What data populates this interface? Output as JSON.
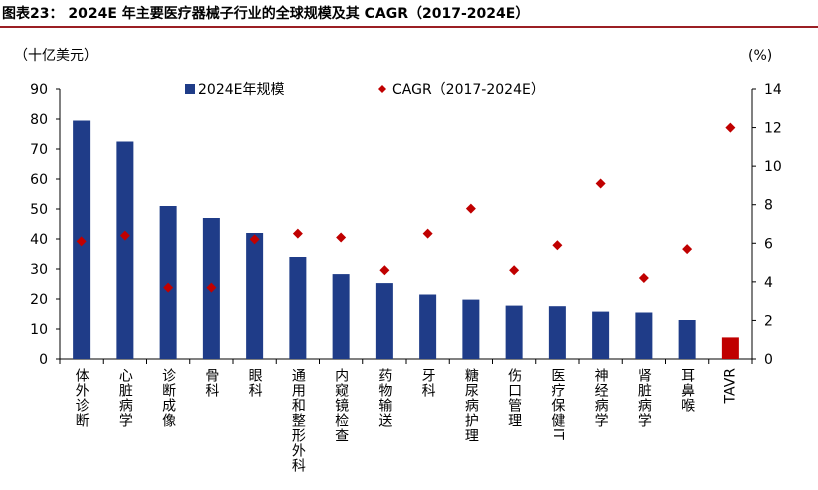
{
  "title": "图表23： 2024E 年主要医疗器械子行业的全球规模及其 CAGR（2017-2024E）",
  "chart_data": {
    "type": "bar",
    "categories": [
      "体外诊断",
      "心脏病学",
      "诊断成像",
      "骨科",
      "眼科",
      "通用和整形外科",
      "内窥镜检查",
      "药物输送",
      "牙科",
      "糖尿病护理",
      "伤口管理",
      "医疗保健IT",
      "神经病学",
      "肾脏病学",
      "耳鼻喉",
      "TAVR"
    ],
    "series": [
      {
        "name": "2024E年规模",
        "kind": "bar",
        "axis": "left",
        "color": "#1f3c88",
        "highlight_color": "#c00000",
        "highlight_index": 15,
        "values": [
          79.5,
          72.5,
          51,
          47,
          42,
          34,
          28.3,
          25.3,
          21.5,
          19.8,
          17.8,
          17.6,
          15.8,
          15.5,
          13,
          7.2
        ]
      },
      {
        "name": "CAGR（2017-2024E）",
        "kind": "scatter",
        "axis": "right",
        "color": "#c00000",
        "values": [
          6.1,
          6.4,
          3.7,
          3.7,
          6.2,
          6.5,
          6.3,
          4.6,
          6.5,
          7.8,
          4.6,
          5.9,
          9.1,
          4.2,
          5.7,
          12
        ]
      }
    ],
    "left_axis": {
      "unit": "（十亿美元）",
      "min": 0,
      "max": 90,
      "step": 10
    },
    "right_axis": {
      "unit": "(%)",
      "min": 0,
      "max": 14,
      "step": 2
    },
    "legend_placement": "top"
  }
}
